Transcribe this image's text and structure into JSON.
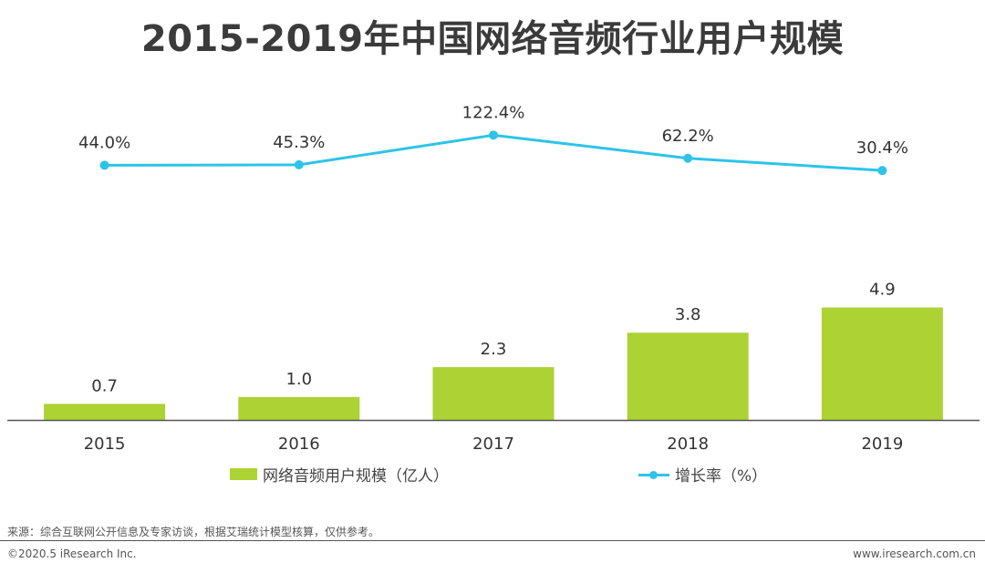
{
  "title": "2015-2019年中国网络音频行业用户规模",
  "chart_data": {
    "type": "bar+line",
    "categories": [
      "2015",
      "2016",
      "2017",
      "2018",
      "2019"
    ],
    "series": [
      {
        "name": "网络音频用户规模（亿人）",
        "type": "bar",
        "values": [
          0.7,
          1.0,
          2.3,
          3.8,
          4.9
        ],
        "labels": [
          "0.7",
          "1.0",
          "2.3",
          "3.8",
          "4.9"
        ],
        "color": "#acd234"
      },
      {
        "name": "增长率（%）",
        "type": "line",
        "values": [
          44.0,
          45.3,
          122.4,
          62.2,
          30.4
        ],
        "labels": [
          "44.0%",
          "45.3%",
          "122.4%",
          "62.2%",
          "30.4%"
        ],
        "color": "#2dc4e8"
      }
    ],
    "legend_position": "bottom"
  },
  "source": "来源：综合互联网公开信息及专家访谈，根据艾瑞统计模型核算，仅供参考。",
  "footer": {
    "copyright": "©2020.5 iResearch Inc.",
    "website": "www.iresearch.com.cn"
  }
}
